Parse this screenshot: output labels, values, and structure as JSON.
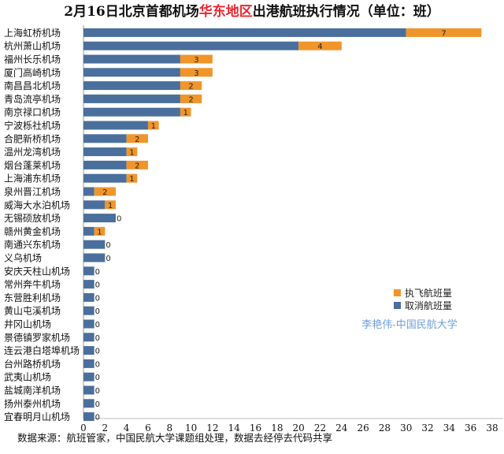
{
  "chart_data": {
    "type": "bar",
    "orientation": "horizontal",
    "stacked": true,
    "title_prefix": "2月16日北京首都机场",
    "title_highlight": "华东地区",
    "title_suffix": "出港航班执行情况（单位：班）",
    "categories": [
      "上海虹桥机场",
      "杭州萧山机场",
      "福州长乐机场",
      "厦门高崎机场",
      "南昌昌北机场",
      "青岛流亭机场",
      "南京禄口机场",
      "宁波栎社机场",
      "合肥新桥机场",
      "温州龙湾机场",
      "烟台蓬莱机场",
      "上海浦东机场",
      "泉州晋江机场",
      "威海大水泊机场",
      "无锡硕放机场",
      "赣州黄金机场",
      "南通兴东机场",
      "义乌机场",
      "安庆天柱山机场",
      "常州奔牛机场",
      "东营胜利机场",
      "黄山屯溪机场",
      "井冈山机场",
      "景德镇罗家机场",
      "连云港白塔埠机场",
      "台州路桥机场",
      "武夷山机场",
      "盐城南洋机场",
      "扬州泰州机场",
      "宜春明月山机场"
    ],
    "series": [
      {
        "name": "取消航班量",
        "color": "#4a6f9c",
        "values": [
          30,
          20,
          9,
          9,
          9,
          9,
          9,
          6,
          4,
          4,
          4,
          4,
          1,
          2,
          3,
          1,
          2,
          2,
          1,
          1,
          1,
          1,
          1,
          1,
          1,
          1,
          1,
          1,
          1,
          1
        ]
      },
      {
        "name": "执飞航班量",
        "color": "#f0952a",
        "values": [
          7,
          4,
          3,
          3,
          2,
          2,
          1,
          1,
          2,
          1,
          2,
          1,
          2,
          1,
          0,
          1,
          0,
          0,
          0,
          0,
          0,
          0,
          0,
          0,
          0,
          0,
          0,
          0,
          0,
          0
        ]
      }
    ],
    "data_labels": [
      "7",
      "4",
      "3",
      "3",
      "2",
      "2",
      "1",
      "1",
      "2",
      "1",
      "2",
      "1",
      "2",
      "1",
      "0",
      "1",
      "0",
      "0",
      "0",
      "0",
      "0",
      "0",
      "0",
      "0",
      "0",
      "0",
      "0",
      "0",
      "0",
      "0"
    ],
    "xlim": [
      0,
      38
    ],
    "xticks": [
      0,
      2,
      4,
      6,
      8,
      10,
      12,
      14,
      16,
      18,
      20,
      22,
      24,
      26,
      28,
      30,
      32,
      34,
      36,
      38
    ],
    "grid": false,
    "legend_position": "right"
  },
  "title_highlight_color": "#e8262e",
  "watermark": "李艳伟-中国民航大学",
  "source_note": "数据来源：航班管家，中国民航大学课题组处理，数据去经停去代码共享"
}
